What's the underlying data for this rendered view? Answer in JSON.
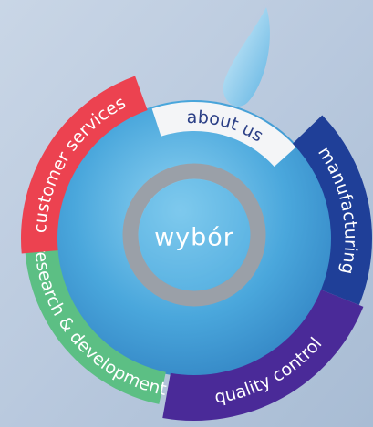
{
  "center": {
    "label": "wybór"
  },
  "segments": [
    {
      "label": "about us"
    },
    {
      "label": "manufacturing"
    },
    {
      "label": "quality control"
    },
    {
      "label": "research & development"
    },
    {
      "label": "customer services"
    }
  ]
}
